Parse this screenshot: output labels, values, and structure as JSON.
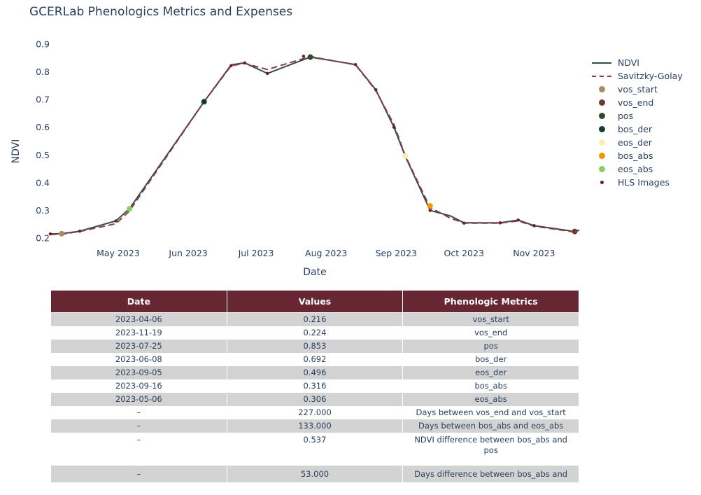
{
  "title": "GCERLab Phenologics Metrics and Expenses",
  "chart_data": {
    "type": "line",
    "xlabel": "Date",
    "ylabel": "NDVI",
    "xlim": [
      "2023-04-01",
      "2023-11-21"
    ],
    "ylim": [
      0.18,
      0.92
    ],
    "x_ticks": [
      {
        "date": "2023-05-01",
        "label": "May 2023"
      },
      {
        "date": "2023-06-01",
        "label": "Jun 2023"
      },
      {
        "date": "2023-07-01",
        "label": "Jul 2023"
      },
      {
        "date": "2023-08-01",
        "label": "Aug 2023"
      },
      {
        "date": "2023-09-01",
        "label": "Sep 2023"
      },
      {
        "date": "2023-10-01",
        "label": "Oct 2023"
      },
      {
        "date": "2023-11-01",
        "label": "Nov 2023"
      }
    ],
    "y_ticks": [
      0.2,
      0.3,
      0.4,
      0.5,
      0.6,
      0.7,
      0.8,
      0.9
    ],
    "grid": false,
    "legend_position": "right",
    "series": [
      {
        "name": "NDVI",
        "style": "line",
        "color": "#2f4f3f",
        "x": [
          "2023-04-01",
          "2023-04-06",
          "2023-04-14",
          "2023-04-30",
          "2023-05-06",
          "2023-06-08",
          "2023-06-20",
          "2023-06-26",
          "2023-07-06",
          "2023-07-25",
          "2023-08-14",
          "2023-08-23",
          "2023-08-31",
          "2023-09-05",
          "2023-09-16",
          "2023-09-25",
          "2023-10-01",
          "2023-10-17",
          "2023-10-25",
          "2023-11-01",
          "2023-11-19",
          "2023-11-21"
        ],
        "values": [
          0.215,
          0.216,
          0.225,
          0.262,
          0.306,
          0.692,
          0.825,
          0.832,
          0.794,
          0.853,
          0.826,
          0.735,
          0.6,
          0.496,
          0.3,
          0.28,
          0.255,
          0.255,
          0.265,
          0.245,
          0.224,
          0.229
        ]
      },
      {
        "name": "Savitzky-Golay",
        "style": "dash",
        "color": "#8b3a4a",
        "x": [
          "2023-04-01",
          "2023-04-06",
          "2023-04-14",
          "2023-04-30",
          "2023-05-06",
          "2023-06-08",
          "2023-06-20",
          "2023-06-26",
          "2023-07-06",
          "2023-07-25",
          "2023-08-14",
          "2023-08-23",
          "2023-08-31",
          "2023-09-05",
          "2023-09-16",
          "2023-09-25",
          "2023-10-01",
          "2023-10-17",
          "2023-10-25",
          "2023-11-01",
          "2023-11-19",
          "2023-11-21"
        ],
        "values": [
          0.213,
          0.214,
          0.224,
          0.252,
          0.298,
          0.692,
          0.822,
          0.83,
          0.808,
          0.855,
          0.825,
          0.732,
          0.61,
          0.498,
          0.31,
          0.272,
          0.254,
          0.254,
          0.262,
          0.243,
          0.222,
          0.228
        ]
      },
      {
        "name": "vos_start",
        "style": "marker",
        "color": "#b08a62",
        "size": 8,
        "x": [
          "2023-04-06"
        ],
        "values": [
          0.216
        ]
      },
      {
        "name": "vos_end",
        "style": "marker",
        "color": "#6b3b34",
        "size": 8,
        "x": [
          "2023-11-19"
        ],
        "values": [
          0.224
        ]
      },
      {
        "name": "pos",
        "style": "marker",
        "color": "#2c4a2e",
        "size": 8,
        "x": [
          "2023-07-25"
        ],
        "values": [
          0.853
        ]
      },
      {
        "name": "bos_der",
        "style": "marker",
        "color": "#143d2c",
        "size": 8,
        "x": [
          "2023-06-08"
        ],
        "values": [
          0.692
        ]
      },
      {
        "name": "eos_der",
        "style": "marker",
        "color": "#f6f0b0",
        "size": 8,
        "x": [
          "2023-09-05"
        ],
        "values": [
          0.496
        ]
      },
      {
        "name": "bos_abs",
        "style": "marker",
        "color": "#f39500",
        "size": 8,
        "x": [
          "2023-09-16"
        ],
        "values": [
          0.316
        ]
      },
      {
        "name": "eos_abs",
        "style": "marker",
        "color": "#88cf66",
        "size": 8,
        "x": [
          "2023-05-06"
        ],
        "values": [
          0.306
        ]
      },
      {
        "name": "HLS Images",
        "style": "marker",
        "color": "#6b1f2c",
        "size": 4.5,
        "x": [
          "2023-04-01",
          "2023-04-14",
          "2023-04-30",
          "2023-06-20",
          "2023-06-26",
          "2023-07-06",
          "2023-07-22",
          "2023-08-14",
          "2023-08-23",
          "2023-08-31",
          "2023-09-16",
          "2023-10-01",
          "2023-10-17",
          "2023-10-25",
          "2023-11-01"
        ],
        "values": [
          0.215,
          0.225,
          0.262,
          0.822,
          0.832,
          0.794,
          0.856,
          0.826,
          0.735,
          0.6,
          0.3,
          0.254,
          0.255,
          0.265,
          0.245
        ]
      }
    ]
  },
  "table": {
    "headers": [
      "Date",
      "Values",
      "Phenologic Metrics"
    ],
    "rows": [
      [
        "2023-04-06",
        "0.216",
        "vos_start"
      ],
      [
        "2023-11-19",
        "0.224",
        "vos_end"
      ],
      [
        "2023-07-25",
        "0.853",
        "pos"
      ],
      [
        "2023-06-08",
        "0.692",
        "bos_der"
      ],
      [
        "2023-09-05",
        "0.496",
        "eos_der"
      ],
      [
        "2023-09-16",
        "0.316",
        "bos_abs"
      ],
      [
        "2023-05-06",
        "0.306",
        "eos_abs"
      ],
      [
        "–",
        "227.000",
        "Days between vos_end and vos_start"
      ],
      [
        "–",
        "133.000",
        "Days between bos_abs and eos_abs"
      ],
      [
        "–",
        "0.537",
        "NDVI difference between bos_abs and pos"
      ],
      [
        "–",
        "53.000",
        "Days difference between bos_abs and"
      ]
    ]
  }
}
